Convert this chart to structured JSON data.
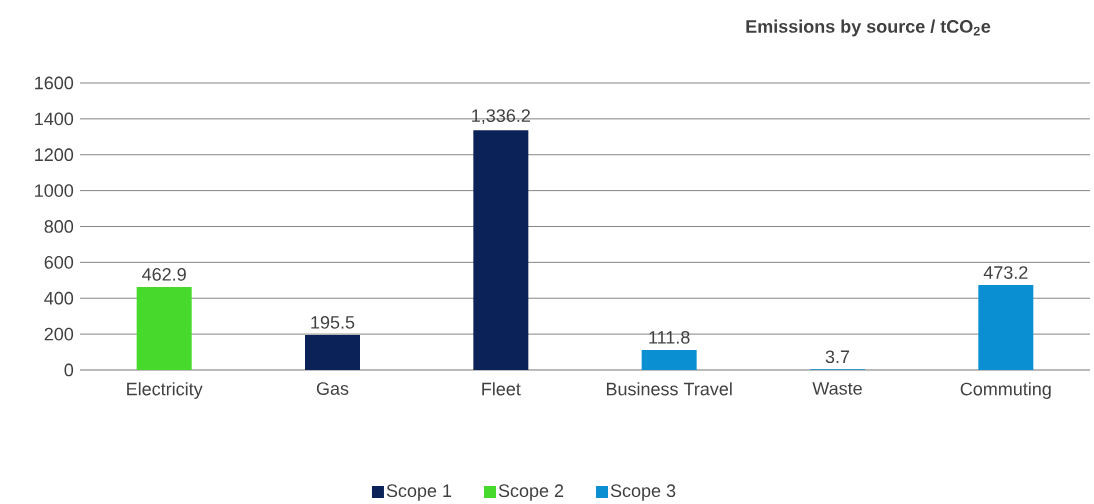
{
  "chart_data": {
    "type": "bar",
    "title": "**Emissions by source / tCO$_{2}$e**",
    "categories": [
      "Electricity",
      "Gas",
      "Fleet",
      "Business Travel",
      "Waste",
      "Commuting"
    ],
    "series": [
      {
        "name": "Scope 1",
        "color": "#0b2258",
        "values": [
          null,
          195.5,
          1336.2,
          null,
          null,
          null
        ],
        "value_labels": [
          null,
          "195.5",
          "1,336.2",
          null,
          null,
          null
        ]
      },
      {
        "name": "Scope 2",
        "color": "#47d92b",
        "values": [
          462.9,
          null,
          null,
          null,
          null,
          null
        ],
        "value_labels": [
          "462.9",
          null,
          null,
          null,
          null,
          null
        ]
      },
      {
        "name": "Scope 3",
        "color": "#0b8fd3",
        "values": [
          null,
          null,
          null,
          111.8,
          3.7,
          473.2
        ],
        "value_labels": [
          null,
          null,
          null,
          "111.8",
          "3.7",
          "473.2"
        ]
      }
    ],
    "ylim": [
      0,
      1600
    ],
    "yticks": [
      0,
      200,
      400,
      600,
      800,
      1000,
      1200,
      1400,
      1600
    ],
    "grid": "y",
    "legend": "bottom"
  }
}
